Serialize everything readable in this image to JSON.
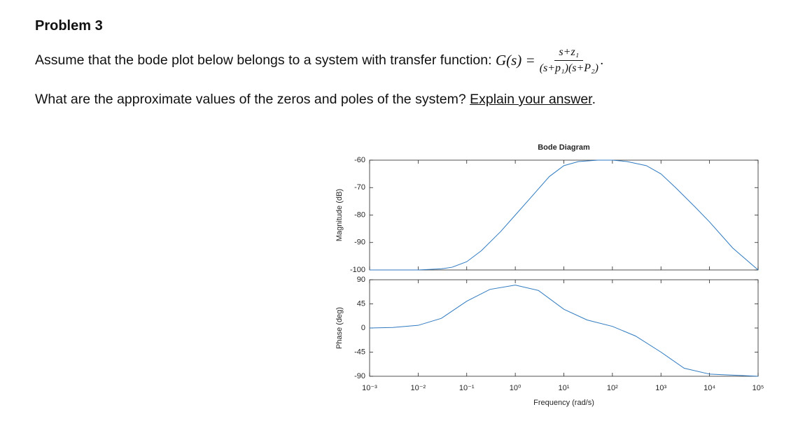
{
  "problem": "Problem 3",
  "question": {
    "intro": "Assume that the bode plot below belongs to a system with transfer function:",
    "lhs": "G(s) =",
    "numerator": "s+z₁",
    "denominator": "(s+p₁)(s+P₂)",
    "end": ".",
    "ask": "What are the approximate values of the zeros and poles of the system?",
    "explain": "Explain your answer",
    "ask_end": "."
  },
  "chart_data": [
    {
      "type": "line",
      "title": "Bode Diagram",
      "y_label": "Magnitude (dB)",
      "x_scale": "log",
      "color": "#2f7ac0",
      "x": [
        0.001,
        0.01,
        0.03,
        0.05,
        0.1,
        0.2,
        0.5,
        1,
        2,
        5,
        10,
        20,
        50,
        100,
        200,
        500,
        1000,
        2000,
        5000,
        10000,
        30000,
        100000
      ],
      "values": [
        -100,
        -100,
        -99.6,
        -99,
        -97,
        -93,
        -86,
        -80,
        -74,
        -66,
        -62,
        -60.5,
        -60,
        -60,
        -60.5,
        -62,
        -65,
        -70,
        -77,
        -82.5,
        -92,
        -100
      ],
      "xlim": [
        0.001,
        100000
      ],
      "ylim": [
        -100,
        -60
      ],
      "yticks": [
        -100,
        -90,
        -80,
        -70,
        -60
      ]
    },
    {
      "type": "line",
      "y_label": "Phase (deg)",
      "x_label": "Frequency  (rad/s)",
      "x_scale": "log",
      "color": "#2f7ac0",
      "x": [
        0.001,
        0.003,
        0.01,
        0.03,
        0.1,
        0.3,
        1,
        3,
        10,
        30,
        100,
        300,
        1000,
        3000,
        10000,
        100000
      ],
      "values": [
        0,
        1,
        5,
        18,
        50,
        72,
        80,
        70,
        35,
        15,
        3,
        -15,
        -45,
        -75,
        -86,
        -90
      ],
      "xlim": [
        0.001,
        100000
      ],
      "ylim": [
        -90,
        90
      ],
      "yticks": [
        -90,
        -45,
        0,
        45,
        90
      ],
      "xticks": [
        {
          "value": 0.001,
          "label": "10⁻³"
        },
        {
          "value": 0.01,
          "label": "10⁻²"
        },
        {
          "value": 0.1,
          "label": "10⁻¹"
        },
        {
          "value": 1,
          "label": "10⁰"
        },
        {
          "value": 10,
          "label": "10¹"
        },
        {
          "value": 100,
          "label": "10²"
        },
        {
          "value": 1000,
          "label": "10³"
        },
        {
          "value": 10000,
          "label": "10⁴"
        },
        {
          "value": 100000,
          "label": "10⁵"
        }
      ]
    }
  ]
}
